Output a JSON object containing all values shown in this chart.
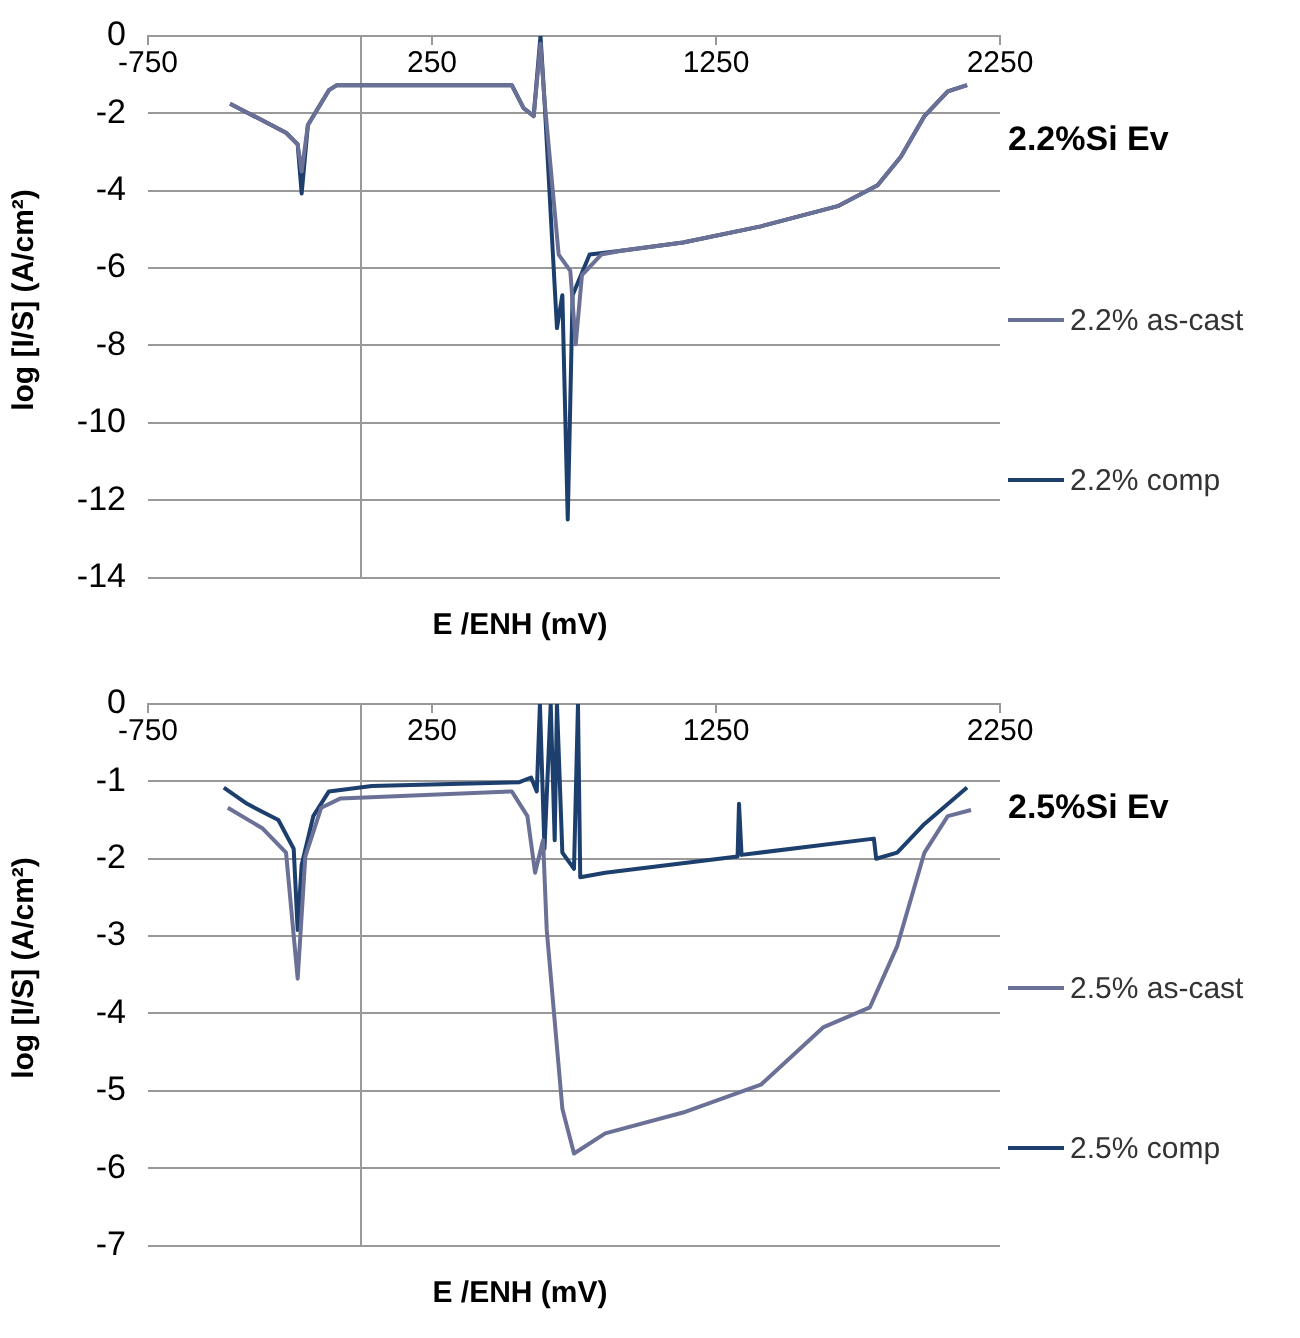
{
  "chart_data": [
    {
      "type": "line",
      "xlabel": "E /ENH (mV)",
      "ylabel": "log [I/S] (A/cm²)",
      "legend_title": "2.2%Si Ev",
      "legend": "right",
      "grid": "y",
      "marker": "none",
      "line_style": "solid",
      "xlim": [
        -750,
        2250
      ],
      "xticks": [
        -750,
        250,
        1250,
        2250
      ],
      "ylim": [
        -14,
        0
      ],
      "yticks": [
        -14,
        -12,
        -10,
        -8,
        -6,
        -4,
        -2,
        0
      ],
      "series": [
        {
          "name": "2.2% as-cast",
          "color": "#6b7196",
          "x": [
            -461,
            -264,
            -223,
            -209,
            -187,
            -113,
            -85,
            531,
            572,
            608,
            632,
            646,
            696,
            737,
            756,
            778,
            846,
            916,
            1134,
            1408,
            1682,
            1819,
            1901,
            1984,
            2066,
            2134
          ],
          "values": [
            -1.75,
            -2.5,
            -2.8,
            -3.5,
            -2.3,
            -1.4,
            -1.27,
            -1.27,
            -1.86,
            -2.07,
            -0.2,
            -1.65,
            -5.65,
            -6.07,
            -7.97,
            -6.18,
            -5.65,
            -5.55,
            -5.34,
            -4.92,
            -4.39,
            -3.86,
            -3.12,
            -2.07,
            -1.43,
            -1.27
          ]
        },
        {
          "name": "2.2% comp",
          "color": "#1c3f6e",
          "x": [
            -461,
            -264,
            -223,
            -209,
            -187,
            -113,
            -85,
            531,
            572,
            608,
            632,
            646,
            690,
            709,
            728,
            745,
            805,
            916,
            1134,
            1408,
            1682,
            1819,
            1901,
            1984,
            2066,
            2134
          ],
          "values": [
            -1.75,
            -2.5,
            -2.8,
            -4.07,
            -2.3,
            -1.4,
            -1.27,
            -1.27,
            -1.86,
            -2.07,
            0,
            -1.65,
            -7.55,
            -6.7,
            -12.5,
            -6.7,
            -5.65,
            -5.55,
            -5.34,
            -4.92,
            -4.39,
            -3.86,
            -3.12,
            -2.07,
            -1.43,
            -1.27
          ]
        }
      ]
    },
    {
      "type": "line",
      "xlabel": "E /ENH (mV)",
      "ylabel": "log [I/S] (A/cm²)",
      "legend_title": "2.5%Si Ev",
      "legend": "right",
      "grid": "y",
      "marker": "none",
      "line_style": "solid",
      "xlim": [
        -750,
        2250
      ],
      "xticks": [
        -750,
        250,
        1250,
        2250
      ],
      "ylim": [
        -7,
        0
      ],
      "yticks": [
        -7,
        -6,
        -5,
        -4,
        -3,
        -2,
        -1,
        0
      ],
      "series": [
        {
          "name": "2.5% as-cast",
          "color": "#6b7196",
          "x": [
            -469,
            -346,
            -264,
            -223,
            -196,
            -140,
            -72,
            531,
            586,
            613,
            641,
            654,
            709,
            750,
            860,
            1134,
            1408,
            1627,
            1792,
            1888,
            1984,
            2066,
            2148
          ],
          "values": [
            -1.34,
            -1.61,
            -1.92,
            -3.55,
            -1.97,
            -1.34,
            -1.22,
            -1.13,
            -1.45,
            -2.18,
            -1.76,
            -2.92,
            -5.23,
            -5.81,
            -5.55,
            -5.28,
            -4.92,
            -4.18,
            -3.92,
            -3.13,
            -1.92,
            -1.45,
            -1.37
          ]
        },
        {
          "name": "2.5% comp",
          "color": "#1c3f6e",
          "x": [
            -483,
            -401,
            -291,
            -237,
            -223,
            -209,
            -168,
            -113,
            38,
            558,
            599,
            619,
            630,
            646,
            668,
            682,
            690,
            709,
            750,
            764,
            772,
            860,
            1326,
            1331,
            1340,
            1806,
            1814,
            1888,
            1984,
            2134
          ],
          "values": [
            -1.08,
            -1.29,
            -1.5,
            -1.87,
            -2.92,
            -2.08,
            -1.45,
            -1.13,
            -1.06,
            -1.01,
            -0.95,
            -1.13,
            0,
            -1.87,
            0,
            -1.76,
            0,
            -1.92,
            -2.13,
            0,
            -2.24,
            -2.18,
            -1.97,
            -1.29,
            -1.95,
            -1.74,
            -2,
            -1.92,
            -1.55,
            -1.08
          ]
        }
      ]
    }
  ]
}
